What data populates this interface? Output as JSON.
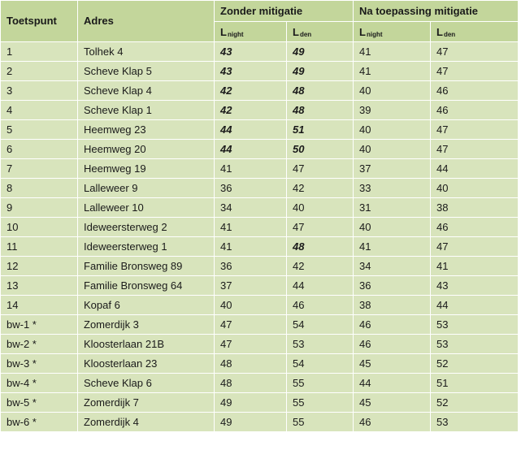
{
  "headers": {
    "toetspunt": "Toetspunt",
    "adres": "Adres",
    "zonder": "Zonder mitigatie",
    "na": "Na toepassing mitigatie",
    "l_main": "L",
    "l_night_sub": "night",
    "l_den_sub": "den"
  },
  "rows": [
    {
      "id": "1",
      "adres": "Tolhek 4",
      "z_night": "43",
      "z_den": "49",
      "n_night": "41",
      "n_den": "47",
      "bold": [
        true,
        true
      ]
    },
    {
      "id": "2",
      "adres": "Scheve Klap 5",
      "z_night": "43",
      "z_den": "49",
      "n_night": "41",
      "n_den": "47",
      "bold": [
        true,
        true
      ]
    },
    {
      "id": "3",
      "adres": "Scheve Klap 4",
      "z_night": "42",
      "z_den": "48",
      "n_night": "40",
      "n_den": "46",
      "bold": [
        true,
        true
      ]
    },
    {
      "id": "4",
      "adres": "Scheve Klap 1",
      "z_night": "42",
      "z_den": "48",
      "n_night": "39",
      "n_den": "46",
      "bold": [
        true,
        true
      ]
    },
    {
      "id": "5",
      "adres": "Heemweg 23",
      "z_night": "44",
      "z_den": "51",
      "n_night": "40",
      "n_den": "47",
      "bold": [
        true,
        true
      ]
    },
    {
      "id": "6",
      "adres": "Heemweg 20",
      "z_night": "44",
      "z_den": "50",
      "n_night": "40",
      "n_den": "47",
      "bold": [
        true,
        true
      ]
    },
    {
      "id": "7",
      "adres": "Heemweg 19",
      "z_night": "41",
      "z_den": "47",
      "n_night": "37",
      "n_den": "44",
      "bold": [
        false,
        false
      ]
    },
    {
      "id": "8",
      "adres": "Lalleweer 9",
      "z_night": "36",
      "z_den": "42",
      "n_night": "33",
      "n_den": "40",
      "bold": [
        false,
        false
      ]
    },
    {
      "id": "9",
      "adres": "Lalleweer 10",
      "z_night": "34",
      "z_den": "40",
      "n_night": "31",
      "n_den": "38",
      "bold": [
        false,
        false
      ]
    },
    {
      "id": "10",
      "adres": "Ideweersterweg 2",
      "z_night": "41",
      "z_den": "47",
      "n_night": "40",
      "n_den": "46",
      "bold": [
        false,
        false
      ]
    },
    {
      "id": "11",
      "adres": "Ideweersterweg 1",
      "z_night": "41",
      "z_den": "48",
      "n_night": "41",
      "n_den": "47",
      "bold": [
        false,
        true
      ]
    },
    {
      "id": "12",
      "adres": "Familie Bronsweg 89",
      "z_night": "36",
      "z_den": "42",
      "n_night": "34",
      "n_den": "41",
      "bold": [
        false,
        false
      ]
    },
    {
      "id": "13",
      "adres": "Familie Bronsweg 64",
      "z_night": "37",
      "z_den": "44",
      "n_night": "36",
      "n_den": "43",
      "bold": [
        false,
        false
      ]
    },
    {
      "id": "14",
      "adres": "Kopaf 6",
      "z_night": "40",
      "z_den": "46",
      "n_night": "38",
      "n_den": "44",
      "bold": [
        false,
        false
      ]
    },
    {
      "id": "bw-1 *",
      "adres": "Zomerdijk 3",
      "z_night": "47",
      "z_den": "54",
      "n_night": "46",
      "n_den": "53",
      "bold": [
        false,
        false
      ]
    },
    {
      "id": "bw-2 *",
      "adres": "Kloosterlaan 21B",
      "z_night": "47",
      "z_den": "53",
      "n_night": "46",
      "n_den": "53",
      "bold": [
        false,
        false
      ]
    },
    {
      "id": "bw-3 *",
      "adres": "Kloosterlaan 23",
      "z_night": "48",
      "z_den": "54",
      "n_night": "45",
      "n_den": "52",
      "bold": [
        false,
        false
      ]
    },
    {
      "id": "bw-4 *",
      "adres": "Scheve Klap 6",
      "z_night": "48",
      "z_den": "55",
      "n_night": "44",
      "n_den": "51",
      "bold": [
        false,
        false
      ]
    },
    {
      "id": "bw-5 *",
      "adres": "Zomerdijk 7",
      "z_night": "49",
      "z_den": "55",
      "n_night": "45",
      "n_den": "52",
      "bold": [
        false,
        false
      ]
    },
    {
      "id": "bw-6 *",
      "adres": "Zomerdijk 4",
      "z_night": "49",
      "z_den": "55",
      "n_night": "46",
      "n_den": "53",
      "bold": [
        false,
        false
      ]
    }
  ]
}
